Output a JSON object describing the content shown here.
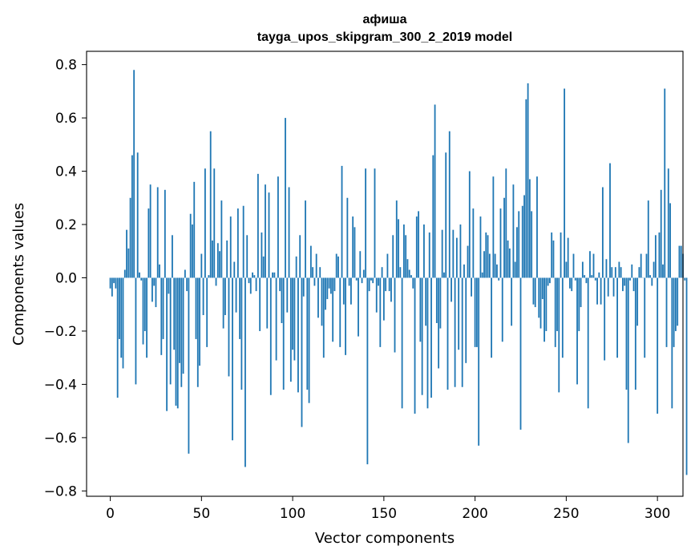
{
  "chart_data": {
    "type": "bar",
    "title": "афиша",
    "subtitle": "tayga_upos_skipgram_300_2_2019 model",
    "xlabel": "Vector components",
    "ylabel": "Components values",
    "xlim": [
      -13,
      314
    ],
    "ylim": [
      -0.82,
      0.85
    ],
    "x_ticks": [
      0,
      50,
      100,
      150,
      200,
      250,
      300
    ],
    "x_tick_labels": [
      "0",
      "50",
      "100",
      "150",
      "200",
      "250",
      "300"
    ],
    "y_ticks": [
      -0.8,
      -0.6,
      -0.4,
      -0.2,
      0.0,
      0.2,
      0.4,
      0.6,
      0.8
    ],
    "y_tick_labels": [
      "−0.8",
      "−0.6",
      "−0.4",
      "−0.2",
      "0.0",
      "0.2",
      "0.4",
      "0.6",
      "0.8"
    ],
    "bar_color": "#1f77b4",
    "grid": false,
    "values": [
      -0.04,
      -0.07,
      -0.02,
      -0.04,
      -0.45,
      -0.23,
      -0.3,
      -0.34,
      0.03,
      0.18,
      0.11,
      0.3,
      0.46,
      0.78,
      -0.4,
      0.47,
      0.02,
      -0.01,
      -0.25,
      -0.2,
      -0.3,
      0.26,
      0.35,
      -0.09,
      -0.03,
      -0.11,
      0.34,
      0.05,
      -0.29,
      -0.23,
      0.33,
      -0.5,
      -0.06,
      -0.4,
      0.16,
      -0.27,
      -0.48,
      -0.49,
      -0.32,
      -0.41,
      -0.36,
      0.03,
      -0.05,
      -0.66,
      0.24,
      0.2,
      0.36,
      -0.23,
      -0.41,
      -0.33,
      0.09,
      -0.14,
      0.41,
      -0.26,
      0.01,
      0.55,
      0.14,
      0.41,
      -0.03,
      0.13,
      0.1,
      0.29,
      -0.19,
      -0.14,
      0.14,
      -0.37,
      0.23,
      -0.61,
      0.06,
      -0.13,
      0.26,
      -0.23,
      -0.42,
      0.27,
      -0.71,
      0.16,
      -0.02,
      -0.06,
      0.02,
      0.01,
      -0.05,
      0.39,
      -0.2,
      0.17,
      0.08,
      0.35,
      -0.19,
      0.32,
      -0.44,
      0.02,
      0.02,
      -0.31,
      0.38,
      -0.05,
      -0.17,
      -0.42,
      0.6,
      -0.13,
      0.34,
      -0.39,
      -0.27,
      -0.31,
      0.08,
      -0.43,
      0.16,
      -0.56,
      -0.07,
      0.29,
      -0.42,
      -0.47,
      0.12,
      0.04,
      -0.03,
      0.09,
      -0.15,
      0.04,
      -0.18,
      -0.3,
      -0.12,
      -0.08,
      -0.04,
      -0.06,
      -0.24,
      -0.05,
      0.09,
      0.08,
      -0.26,
      0.42,
      -0.1,
      -0.29,
      0.3,
      -0.03,
      -0.1,
      0.23,
      0.19,
      -0.01,
      -0.22,
      0.1,
      -0.02,
      0.03,
      0.41,
      -0.7,
      -0.05,
      -0.01,
      -0.02,
      0.41,
      -0.13,
      -0.03,
      -0.26,
      0.04,
      -0.16,
      -0.05,
      0.09,
      -0.05,
      -0.09,
      0.16,
      -0.28,
      0.29,
      0.22,
      0.04,
      -0.49,
      0.2,
      0.16,
      0.07,
      0.03,
      0.01,
      -0.04,
      -0.51,
      0.23,
      0.25,
      -0.24,
      -0.44,
      0.2,
      -0.18,
      -0.49,
      0.17,
      -0.45,
      0.46,
      0.65,
      -0.17,
      -0.34,
      -0.19,
      0.18,
      0.02,
      0.47,
      -0.42,
      0.55,
      -0.09,
      0.18,
      -0.41,
      0.15,
      -0.27,
      0.2,
      -0.41,
      0.05,
      -0.32,
      0.12,
      0.4,
      -0.07,
      0.26,
      -0.26,
      -0.26,
      -0.63,
      0.23,
      0.02,
      0.1,
      0.17,
      0.16,
      0.09,
      -0.3,
      0.38,
      0.09,
      0.05,
      -0.01,
      0.26,
      -0.24,
      0.3,
      0.41,
      0.14,
      0.11,
      -0.18,
      0.35,
      0.06,
      0.19,
      0.25,
      -0.57,
      0.27,
      0.31,
      0.67,
      0.73,
      0.37,
      0.25,
      -0.1,
      -0.11,
      0.38,
      -0.15,
      -0.19,
      -0.08,
      -0.24,
      -0.2,
      -0.03,
      -0.02,
      0.17,
      0.14,
      -0.26,
      -0.2,
      -0.43,
      0.17,
      -0.3,
      0.71,
      0.06,
      0.15,
      -0.04,
      -0.05,
      0.09,
      -0.01,
      -0.4,
      -0.2,
      -0.11,
      0.06,
      0.01,
      -0.02,
      -0.49,
      0.1,
      0.01,
      0.09,
      -0.01,
      -0.1,
      0.02,
      -0.1,
      0.34,
      -0.31,
      0.07,
      -0.07,
      0.43,
      0.04,
      -0.07,
      0.04,
      -0.3,
      0.06,
      0.04,
      -0.05,
      -0.03,
      -0.42,
      -0.62,
      -0.01,
      0.05,
      -0.05,
      -0.42,
      -0.18,
      0.04,
      0.09,
      0.0,
      -0.3,
      0.09,
      0.29,
      0.01,
      -0.03,
      0.06,
      0.16,
      -0.51,
      0.17,
      0.33,
      0.05,
      0.71,
      -0.26,
      0.41,
      0.28,
      -0.49,
      -0.26,
      -0.2,
      -0.18,
      0.12,
      0.12,
      0.09,
      -0.01,
      -0.74
    ]
  }
}
